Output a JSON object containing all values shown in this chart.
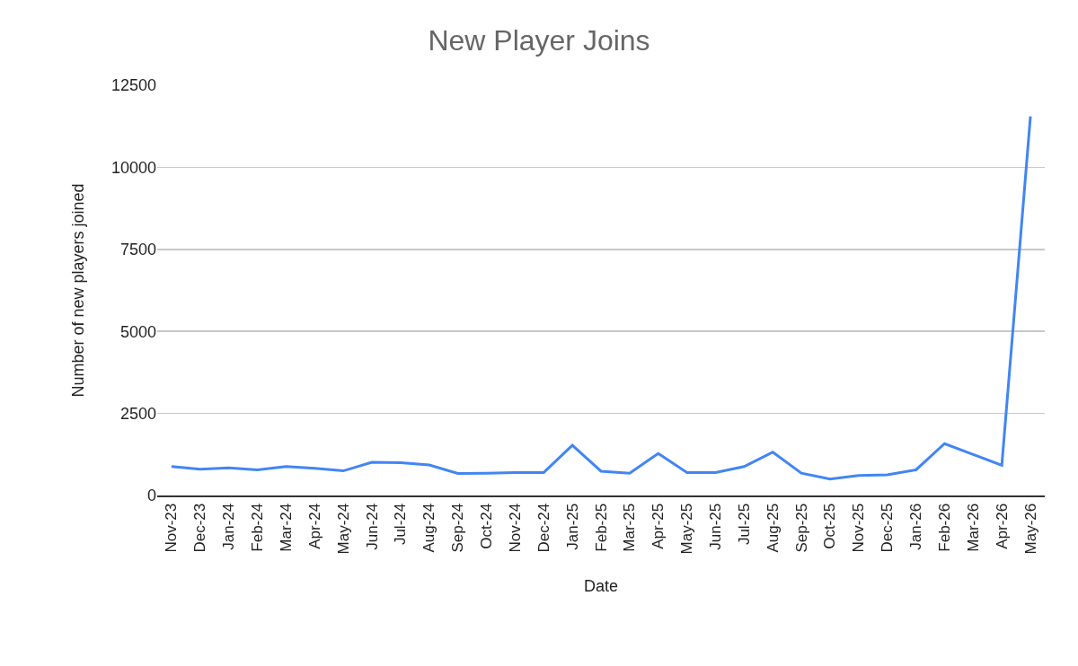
{
  "chart_data": {
    "type": "line",
    "title": "New Player Joins",
    "xlabel": "Date",
    "ylabel": "Number of new players joined",
    "categories": [
      "Nov-23",
      "Dec-23",
      "Jan-24",
      "Feb-24",
      "Mar-24",
      "Apr-24",
      "May-24",
      "Jun-24",
      "Jul-24",
      "Aug-24",
      "Sep-24",
      "Oct-24",
      "Nov-24",
      "Dec-24",
      "Jan-25",
      "Feb-25",
      "Mar-25",
      "Apr-25",
      "May-25",
      "Jun-25",
      "Jul-25",
      "Aug-25",
      "Sep-25",
      "Oct-25",
      "Nov-25",
      "Dec-25",
      "Jan-26",
      "Feb-26",
      "Mar-26",
      "Apr-26",
      "May-26"
    ],
    "series": [
      {
        "color": "#4285f4",
        "values": [
          880,
          800,
          840,
          780,
          880,
          830,
          750,
          1010,
          1000,
          930,
          670,
          680,
          700,
          700,
          1530,
          740,
          680,
          1280,
          700,
          700,
          880,
          1320,
          680,
          500,
          610,
          630,
          780,
          1580,
          1250,
          920,
          11550
        ]
      }
    ],
    "ylim": [
      0,
      12500
    ],
    "yticks": [
      0,
      2500,
      5000,
      7500,
      10000,
      12500
    ],
    "grid": "y",
    "legend": false,
    "marker": "none",
    "line_style": "solid"
  }
}
